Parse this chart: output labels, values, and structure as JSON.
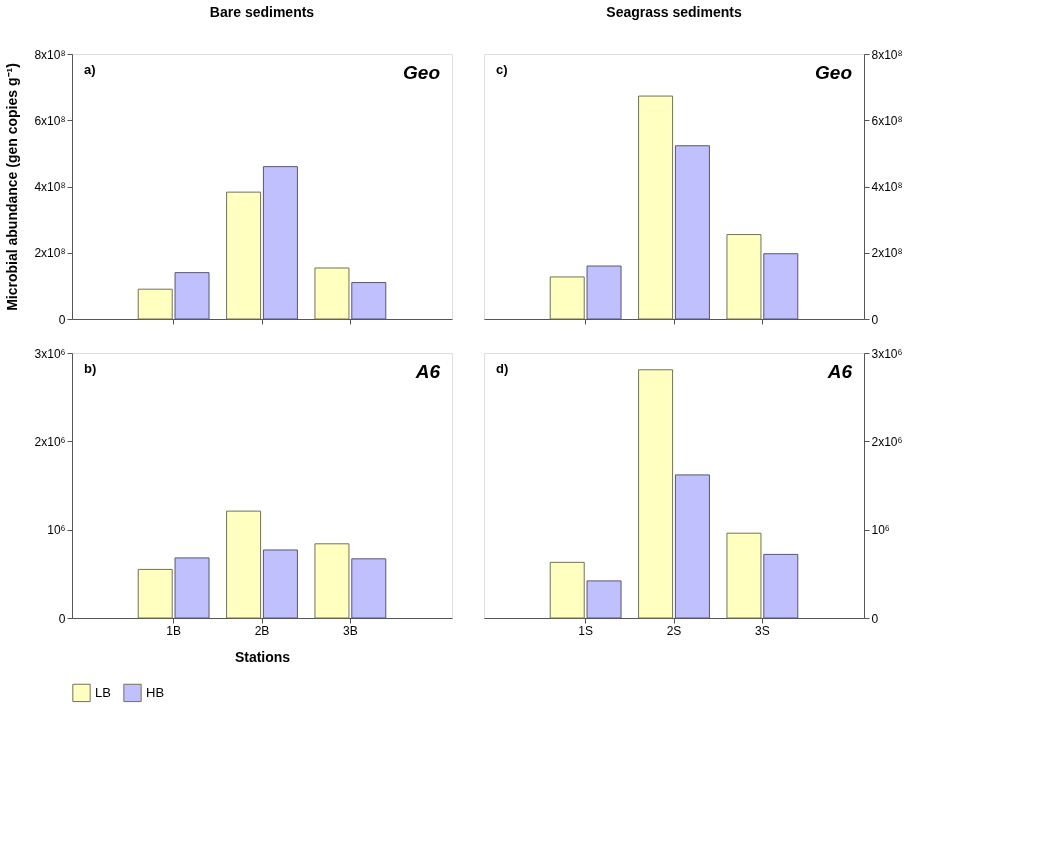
{
  "chart_data": [
    {
      "type": "bar",
      "title": "Bare sediments",
      "ylabel": "Microbial abundance (gen copies g⁻¹)",
      "annotations": [
        "a)",
        "Geo"
      ],
      "categories": [
        null,
        null,
        null
      ],
      "series": [
        {
          "name": "LB",
          "color": "#ffffc0",
          "values": [
            90000000.0,
            383000000.0,
            154000000.0
          ]
        },
        {
          "name": "HB",
          "color": "#c0c0ff",
          "values": [
            140000000.0,
            460000000.0,
            110000000.0
          ]
        }
      ],
      "ylim": [
        0,
        800000000.0
      ],
      "yticks": [
        0,
        {
          "value": 200000000.0,
          "label": "2x10⁸"
        },
        {
          "value": 400000000.0,
          "label": "4x10⁸"
        },
        {
          "value": 600000000.0,
          "label": "6x10⁸"
        },
        {
          "value": 800000000.0,
          "label": "8x10⁸"
        }
      ],
      "tick_labels": "y",
      "legend": "bottom",
      "grid": false
    },
    {
      "type": "bar",
      "xlabel": "Stations",
      "annotations": [
        "b)",
        "A6"
      ],
      "categories": [
        "1B",
        "2B",
        "3B"
      ],
      "series": [
        {
          "name": "LB",
          "color": "#ffffc0",
          "values": [
            550000.0,
            1210000.0,
            840000.0
          ]
        },
        {
          "name": "HB",
          "color": "#c0c0ff",
          "values": [
            680000.0,
            770000.0,
            670000.0
          ]
        }
      ],
      "ylim": [
        0,
        3000000.0
      ],
      "yticks": [
        0,
        {
          "value": 1000000.0,
          "label": "10⁶"
        },
        {
          "value": 2000000.0,
          "label": "2x10⁶"
        },
        {
          "value": 3000000.0,
          "label": "3x10⁶"
        }
      ],
      "legend": "bottom",
      "grid": false
    },
    {
      "type": "bar",
      "title": "Seagrass sediments",
      "annotations": [
        "c)",
        "Geo"
      ],
      "categories": [
        null,
        null,
        null
      ],
      "series": [
        {
          "name": "LB",
          "color": "#ffffc0",
          "values": [
            127000000.0,
            673000000.0,
            255000000.0
          ]
        },
        {
          "name": "HB",
          "color": "#c0c0ff",
          "values": [
            160000000.0,
            523000000.0,
            197000000.0
          ]
        }
      ],
      "ylim": [
        0,
        800000000.0
      ],
      "yticks": [
        0,
        {
          "value": 200000000.0,
          "label": "2x10⁸"
        },
        {
          "value": 400000000.0,
          "label": "4x10⁸"
        },
        {
          "value": 600000000.0,
          "label": "6x10⁸"
        },
        {
          "value": 800000000.0,
          "label": "8x10⁸"
        }
      ],
      "tick_labels": "y",
      "grid": false
    },
    {
      "type": "bar",
      "annotations": [
        "d)",
        "A6"
      ],
      "categories": [
        "1S",
        "2S",
        "3S"
      ],
      "series": [
        {
          "name": "LB",
          "color": "#ffffc0",
          "values": [
            630000.0,
            2810000.0,
            960000.0
          ]
        },
        {
          "name": "HB",
          "color": "#c0c0ff",
          "values": [
            420000.0,
            1620000.0,
            720000.0
          ]
        }
      ],
      "ylim": [
        0,
        3000000.0
      ],
      "yticks": [
        0,
        {
          "value": 1000000.0,
          "label": "10⁶"
        },
        {
          "value": 2000000.0,
          "label": "2x10⁶"
        },
        {
          "value": 3000000.0,
          "label": "3x10⁶"
        }
      ],
      "grid": false
    }
  ]
}
